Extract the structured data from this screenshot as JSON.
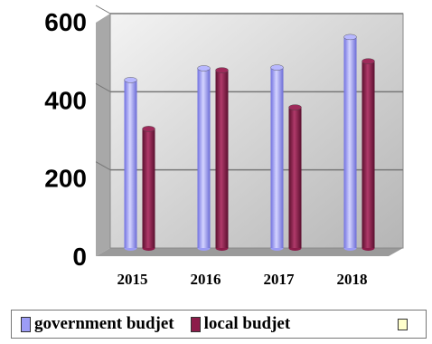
{
  "chart_data": {
    "type": "bar",
    "title": "",
    "xlabel": "",
    "ylabel": "",
    "categories": [
      "2015",
      "2016",
      "2017",
      "2018"
    ],
    "ylim": [
      0,
      600
    ],
    "yticks": [
      "0",
      "200",
      "400",
      "600"
    ],
    "grid": true,
    "legend_position": "bottom",
    "series": [
      {
        "name": "government budjet",
        "values": [
          430,
          460,
          462,
          540
        ],
        "color": "#9c9cf5"
      },
      {
        "name": "local budjet",
        "values": [
          305,
          455,
          360,
          478
        ],
        "color": "#8c1c4a"
      }
    ]
  }
}
